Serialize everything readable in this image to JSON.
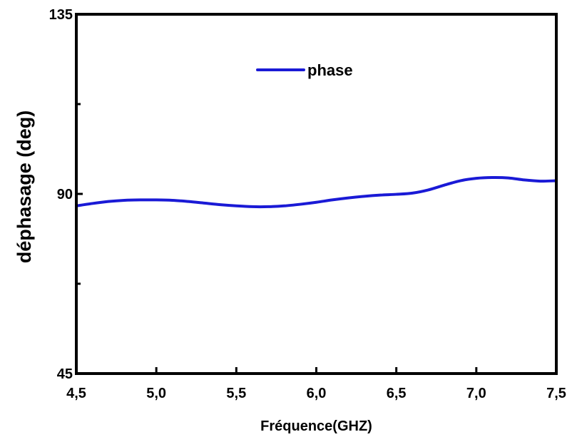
{
  "chart_data": {
    "type": "line",
    "title": "",
    "xlabel": "Fréquence(GHZ)",
    "ylabel": "déphasage  (deg)",
    "xlim": [
      4.5,
      7.5
    ],
    "ylim": [
      45,
      135
    ],
    "x_ticks": [
      4.5,
      5.0,
      5.5,
      6.0,
      6.5,
      7.0,
      7.5
    ],
    "x_tick_labels": [
      "4,5",
      "5,0",
      "5,5",
      "6,0",
      "6,5",
      "7,0",
      "7,5"
    ],
    "y_ticks": [
      45,
      90,
      135
    ],
    "y_tick_labels": [
      "45",
      "90",
      "135"
    ],
    "y_minor_ticks": [
      67.5,
      112.5
    ],
    "grid": false,
    "legend_position": "top-center",
    "series": [
      {
        "name": "phase",
        "color": "#1a1ad6",
        "x": [
          4.5,
          4.6,
          4.7,
          4.8,
          4.9,
          5.0,
          5.1,
          5.2,
          5.3,
          5.4,
          5.5,
          5.6,
          5.7,
          5.8,
          5.9,
          6.0,
          6.1,
          6.2,
          6.3,
          6.4,
          6.5,
          6.6,
          6.7,
          6.8,
          6.9,
          7.0,
          7.1,
          7.2,
          7.3,
          7.4,
          7.5
        ],
        "values": [
          87.0,
          87.6,
          88.1,
          88.4,
          88.5,
          88.5,
          88.4,
          88.1,
          87.7,
          87.3,
          87.0,
          86.8,
          86.8,
          87.0,
          87.4,
          87.9,
          88.5,
          89.0,
          89.4,
          89.7,
          89.9,
          90.2,
          91.0,
          92.2,
          93.3,
          93.9,
          94.1,
          94.0,
          93.5,
          93.2,
          93.3
        ]
      }
    ]
  }
}
